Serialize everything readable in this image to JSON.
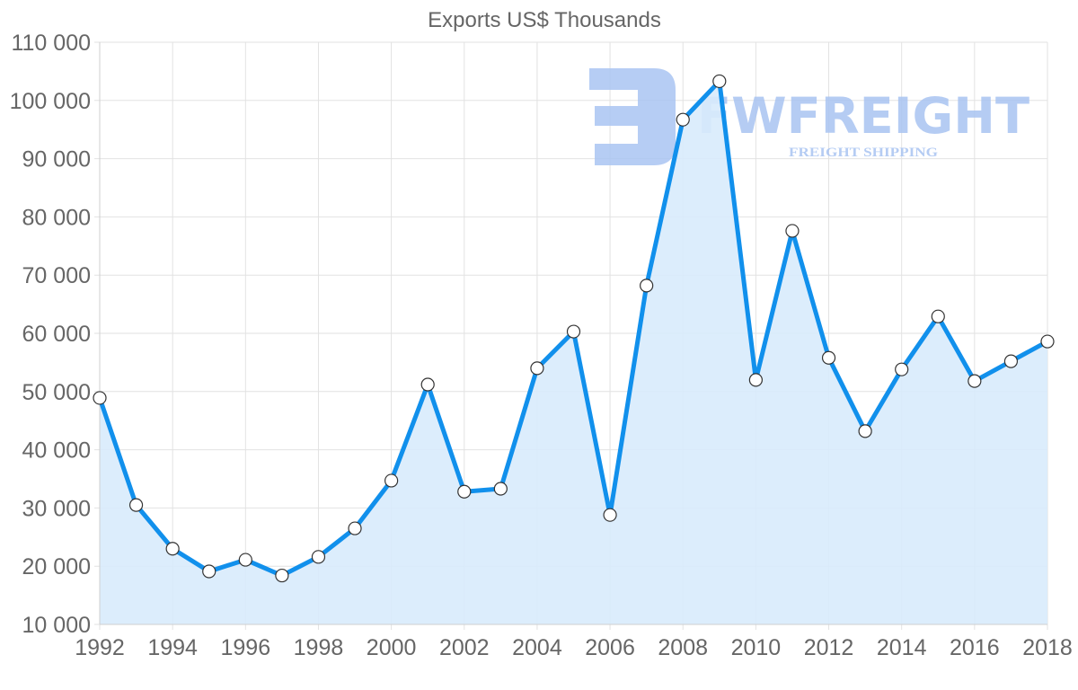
{
  "chart_data": {
    "type": "area",
    "title": "Exports US$ Thousands",
    "xlabel": "",
    "ylabel": "",
    "x": [
      1992,
      1993,
      1994,
      1995,
      1996,
      1997,
      1998,
      1999,
      2000,
      2001,
      2002,
      2003,
      2004,
      2005,
      2006,
      2007,
      2008,
      2009,
      2010,
      2011,
      2012,
      2013,
      2014,
      2015,
      2016,
      2017,
      2018
    ],
    "series": [
      {
        "name": "Exports US$ Thousands",
        "values": [
          48900,
          30500,
          23000,
          19100,
          21100,
          18400,
          21600,
          26500,
          34700,
          51200,
          32800,
          33300,
          54000,
          60300,
          28800,
          68200,
          96700,
          103300,
          52000,
          77600,
          55800,
          43200,
          53800,
          62900,
          51800,
          55200,
          58600
        ]
      }
    ],
    "ylim": [
      10000,
      110000
    ],
    "xlim": [
      1992,
      2018
    ],
    "y_ticks": [
      10000,
      20000,
      30000,
      40000,
      50000,
      60000,
      70000,
      80000,
      90000,
      100000,
      110000
    ],
    "y_tick_labels": [
      "10 000",
      "20 000",
      "30 000",
      "40 000",
      "50 000",
      "60 000",
      "70 000",
      "80 000",
      "90 000",
      "100 000",
      "110 000"
    ],
    "x_ticks": [
      1992,
      1994,
      1996,
      1998,
      2000,
      2002,
      2004,
      2006,
      2008,
      2010,
      2012,
      2014,
      2016,
      2018
    ],
    "x_tick_labels": [
      "1992",
      "1994",
      "1996",
      "1998",
      "2000",
      "2002",
      "2004",
      "2006",
      "2008",
      "2010",
      "2012",
      "2014",
      "2016",
      "2018"
    ],
    "grid": true,
    "legend": "none"
  },
  "colors": {
    "line": "#1190ec",
    "fill": "#d8ebfc",
    "marker_fill": "#ffffff",
    "marker_stroke": "#333333",
    "watermark": "#a9c4f2"
  },
  "watermark": {
    "brand": "FWFREIGHT",
    "tagline": "FREIGHT SHIPPING"
  }
}
